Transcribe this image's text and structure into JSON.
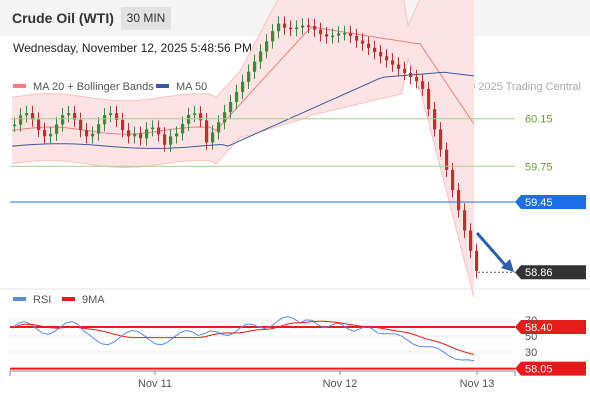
{
  "header": {
    "instrument": "Crude Oil (WTI)",
    "timeframe": "30 MIN"
  },
  "datetime": "Wednesday, November 12, 2025 5:48:56 PM CET",
  "watermark": "Research © 2025 Trading Central",
  "chart_data": [
    {
      "type": "candlestick",
      "legend": [
        {
          "name": "MA 20 + Bollinger Bands",
          "color": "#f08080"
        },
        {
          "name": "MA 50",
          "color": "#3a5a9a"
        }
      ],
      "x_ticks": [
        "Nov 11",
        "Nov 12",
        "Nov 13"
      ],
      "levels": [
        {
          "value": 60.15,
          "label": "60.15",
          "kind": "resistance",
          "color": "#a6d18a"
        },
        {
          "value": 59.75,
          "label": "59.75",
          "kind": "resistance",
          "color": "#a6d18a"
        },
        {
          "value": 59.45,
          "label": "59.45",
          "kind": "pivot",
          "color": "#1e6fe6"
        },
        {
          "value": 58.86,
          "label": "58.86",
          "kind": "last",
          "color": "#333333"
        },
        {
          "value": 58.4,
          "label": "58.40",
          "kind": "support",
          "color": "#e81b1b"
        },
        {
          "value": 58.05,
          "label": "58.05",
          "kind": "support",
          "color": "#e81b1b"
        }
      ],
      "bollinger_upper_end": 61.65,
      "ma50_end": 60.55
    },
    {
      "type": "line",
      "legend": [
        {
          "name": "RSI",
          "color": "#5a8ae0"
        },
        {
          "name": "9MA",
          "color": "#e81b1b"
        }
      ],
      "y_ticks": [
        "70",
        "50",
        "30"
      ],
      "ylim": [
        10,
        80
      ]
    }
  ]
}
